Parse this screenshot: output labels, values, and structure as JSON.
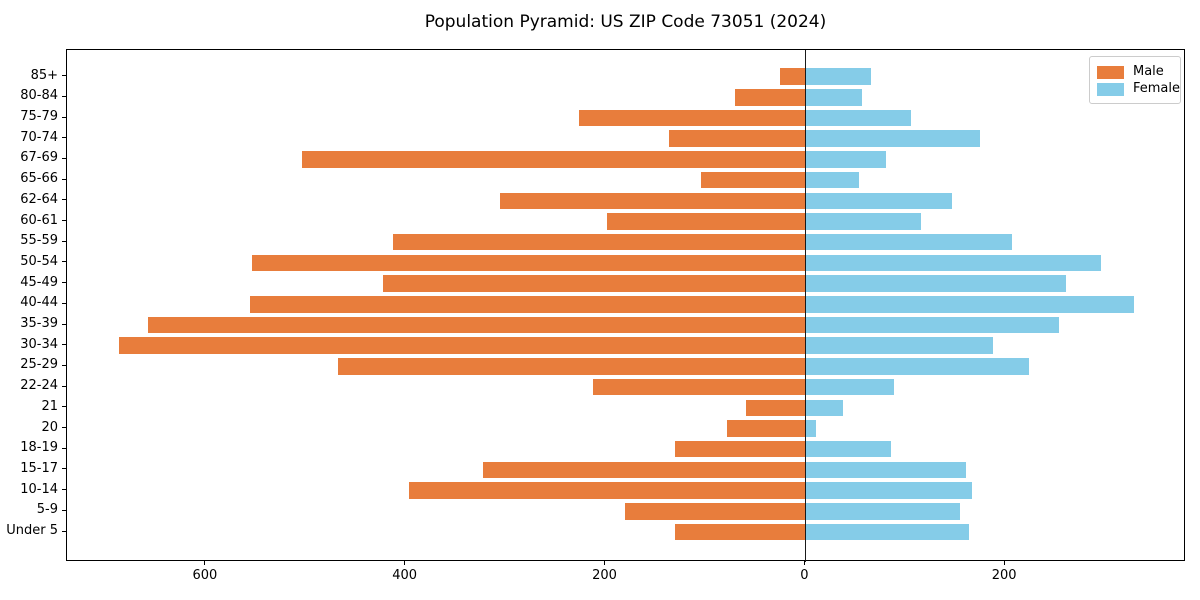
{
  "title": "Population Pyramid: US ZIP Code 73051 (2024)",
  "legend": {
    "items": [
      {
        "label": "Male",
        "color": "#e87d3c"
      },
      {
        "label": "Female",
        "color": "#85cce8"
      }
    ]
  },
  "colors": {
    "male": "#e87d3c",
    "female": "#85cce8",
    "axis": "#000000",
    "zero_line": "#1a1a1a",
    "legend_border": "#cccccc",
    "background": "#ffffff"
  },
  "chart_data": {
    "type": "bar",
    "subtype": "population-pyramid",
    "orientation": "horizontal",
    "title": "Population Pyramid: US ZIP Code 73051 (2024)",
    "xlabel": "",
    "ylabel": "",
    "grid": false,
    "legend_position": "upper right",
    "zero_line": true,
    "xlim": [
      -739,
      381
    ],
    "categories": [
      "85+",
      "80-84",
      "75-79",
      "70-74",
      "67-69",
      "65-66",
      "62-64",
      "60-61",
      "55-59",
      "50-54",
      "45-49",
      "40-44",
      "35-39",
      "30-34",
      "25-29",
      "22-24",
      "21",
      "20",
      "18-19",
      "15-17",
      "10-14",
      "5-9",
      "Under 5"
    ],
    "series": [
      {
        "name": "Male",
        "side": "left",
        "color": "#e87d3c",
        "values": [
          25,
          70,
          227,
          136,
          504,
          104,
          306,
          199,
          413,
          554,
          423,
          556,
          658,
          687,
          468,
          213,
          59,
          78,
          130,
          323,
          397,
          181,
          130
        ]
      },
      {
        "name": "Female",
        "side": "right",
        "color": "#85cce8",
        "values": [
          66,
          57,
          106,
          175,
          81,
          54,
          147,
          116,
          207,
          296,
          261,
          329,
          254,
          188,
          224,
          89,
          38,
          11,
          86,
          161,
          167,
          155,
          164
        ]
      }
    ],
    "x_ticks": [
      {
        "value": -600,
        "label": "600"
      },
      {
        "value": -400,
        "label": "400"
      },
      {
        "value": -200,
        "label": "200"
      },
      {
        "value": 0,
        "label": "0"
      },
      {
        "value": 200,
        "label": "200"
      }
    ]
  }
}
